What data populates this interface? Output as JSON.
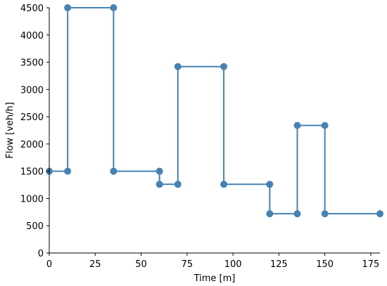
{
  "chart_data": {
    "type": "line",
    "xlabel": "Time [m]",
    "ylabel": "Flow [veh/h]",
    "xlim": [
      0,
      180
    ],
    "ylim": [
      0,
      4500
    ],
    "x_ticks": [
      0,
      25,
      50,
      75,
      100,
      125,
      150,
      175
    ],
    "y_ticks": [
      0,
      500,
      1000,
      1500,
      2000,
      2500,
      3000,
      3500,
      4000,
      4500
    ],
    "grid": false,
    "series": [
      {
        "color": "#4682b4",
        "points": [
          {
            "x": 0,
            "y": 1500
          },
          {
            "x": 10,
            "y": 1500
          },
          {
            "x": 10,
            "y": 4500
          },
          {
            "x": 35,
            "y": 4500
          },
          {
            "x": 35,
            "y": 1500
          },
          {
            "x": 60,
            "y": 1500
          },
          {
            "x": 60,
            "y": 1260
          },
          {
            "x": 70,
            "y": 1260
          },
          {
            "x": 70,
            "y": 3420
          },
          {
            "x": 95,
            "y": 3420
          },
          {
            "x": 95,
            "y": 1260
          },
          {
            "x": 120,
            "y": 1260
          },
          {
            "x": 120,
            "y": 720
          },
          {
            "x": 135,
            "y": 720
          },
          {
            "x": 135,
            "y": 2340
          },
          {
            "x": 150,
            "y": 2340
          },
          {
            "x": 150,
            "y": 720
          },
          {
            "x": 180,
            "y": 720
          }
        ]
      }
    ]
  }
}
